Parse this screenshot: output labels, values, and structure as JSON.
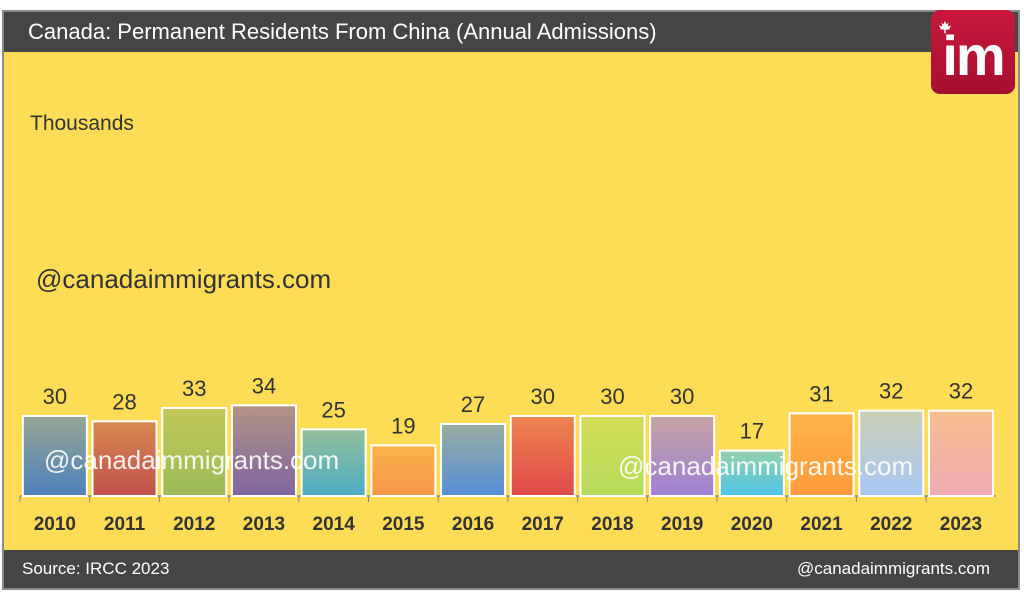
{
  "logo": {
    "text": "im"
  },
  "chart_data": {
    "type": "bar",
    "title": "Canada: Permanent Residents From China (Annual Admissions)",
    "ylabel": "Thousands",
    "categories": [
      "2010",
      "2011",
      "2012",
      "2013",
      "2014",
      "2015",
      "2016",
      "2017",
      "2018",
      "2019",
      "2020",
      "2021",
      "2022",
      "2023"
    ],
    "values": [
      30,
      28,
      33,
      34,
      25,
      19,
      27,
      30,
      30,
      30,
      17,
      31,
      32,
      32
    ],
    "colors": [
      "#4f81bd",
      "#c0504d",
      "#9bbb59",
      "#8064a2",
      "#4bacc6",
      "#f79646",
      "#558ed5",
      "#e04a4a",
      "#b5dc5a",
      "#9f7fd6",
      "#4ec6e6",
      "#ff9a3c",
      "#a9c7f5",
      "#f0a9b2"
    ],
    "ylim": [
      0,
      180
    ],
    "grid": false,
    "watermarks": [
      "@canadaimmigrants.com",
      "@canadaimmigrants.com",
      "@canadaimmigrants.com"
    ],
    "source": "Source: IRCC 2023",
    "footer_right": "@canadaimmigrants.com"
  }
}
